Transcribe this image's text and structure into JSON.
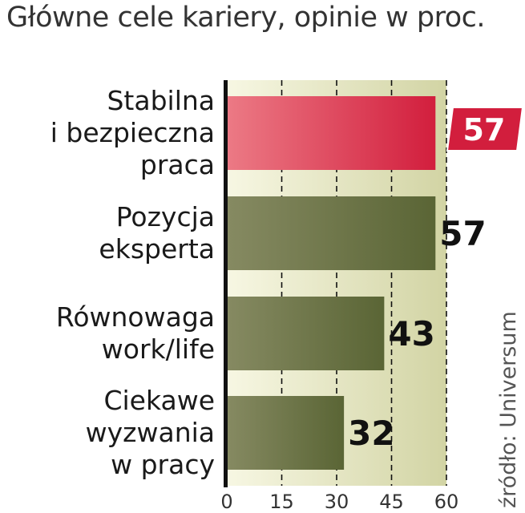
{
  "chart_data": {
    "type": "bar",
    "orientation": "horizontal",
    "title": "Główne cele kariery, opinie w proc.",
    "source": "źródło: Universum",
    "categories": [
      [
        "Stabilna",
        "i bezpieczna",
        "praca"
      ],
      [
        "Pozycja",
        "eksperta"
      ],
      [
        "Równowaga",
        "work/life"
      ],
      [
        "Ciekawe",
        "wyzwania",
        "w pracy"
      ]
    ],
    "values": [
      57,
      57,
      43,
      32
    ],
    "value_labels": [
      "57",
      "57",
      "43",
      "32"
    ],
    "highlight_index": 0,
    "xlim": [
      0,
      60
    ],
    "xticks": [
      0,
      15,
      30,
      45,
      60
    ],
    "xtick_labels": [
      "0",
      "15",
      "30",
      "45",
      "60"
    ],
    "grid": "dashed vertical",
    "colors": {
      "bar": "#5a6535",
      "bar_light": "#868a62",
      "highlight": "#d21e3d",
      "highlight_light": "#ec7a85",
      "background_light": "#f7f7e3",
      "background_dark": "#d2d4a4",
      "axis": "#111111"
    }
  }
}
